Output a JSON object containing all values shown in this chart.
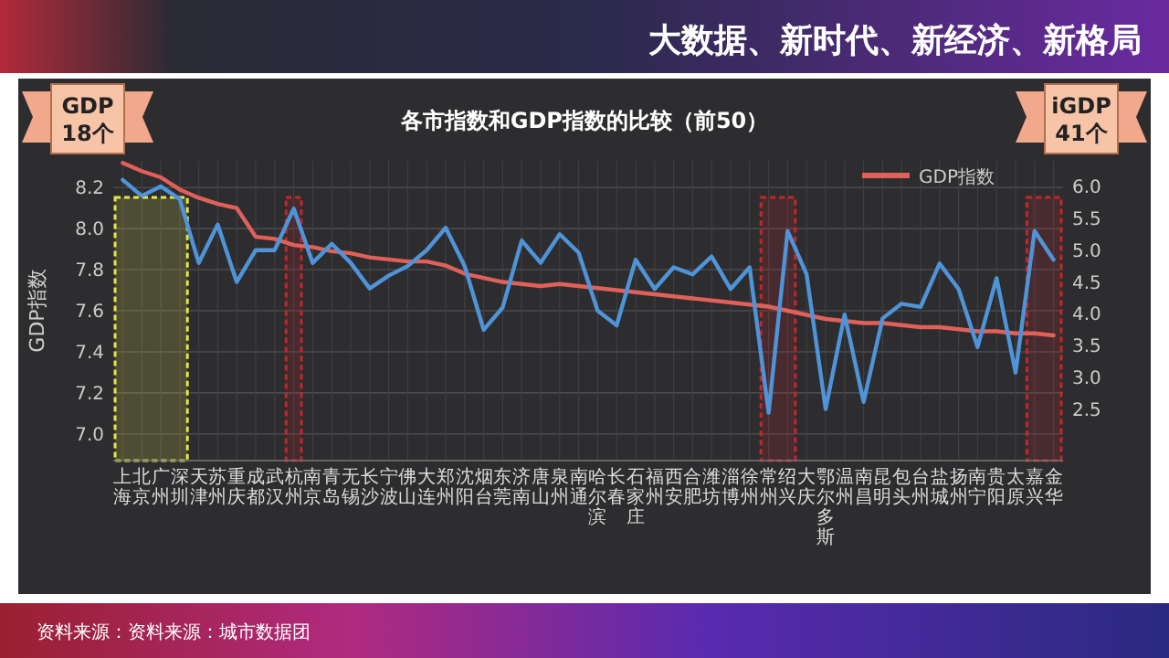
{
  "chart_data": {
    "type": "line",
    "title": "大数据、新时代、新经济、新格局",
    "subtitle": "各市指数和GDP指数的比较（前50）",
    "ylabel": "GDP指数",
    "categories": [
      "上海",
      "北京",
      "广州",
      "深圳",
      "天津",
      "苏州",
      "重庆",
      "成都",
      "武汉",
      "杭州",
      "南京",
      "青岛",
      "无锡",
      "长沙",
      "宁波",
      "佛山",
      "大连",
      "郑州",
      "沈阳",
      "烟台",
      "东莞",
      "济南",
      "唐山",
      "泉州",
      "南通",
      "哈尔滨",
      "长春",
      "石家庄",
      "福州",
      "西安",
      "合肥",
      "潍坊",
      "淄博",
      "徐州",
      "常州",
      "绍兴",
      "大庆",
      "鄂尔多斯",
      "温州",
      "南昌",
      "昆明",
      "包头",
      "台州",
      "盐城",
      "扬州",
      "南宁",
      "贵阳",
      "太原",
      "嘉兴",
      "金华"
    ],
    "series": [
      {
        "name": "GDP指数",
        "color": "#e0605a",
        "values": [
          8.32,
          8.28,
          8.25,
          8.19,
          8.15,
          8.12,
          8.1,
          7.96,
          7.95,
          7.92,
          7.91,
          7.89,
          7.88,
          7.86,
          7.85,
          7.84,
          7.84,
          7.82,
          7.78,
          7.76,
          7.74,
          7.73,
          7.72,
          7.73,
          7.72,
          7.71,
          7.7,
          7.69,
          7.68,
          7.67,
          7.66,
          7.65,
          7.64,
          7.63,
          7.62,
          7.6,
          7.58,
          7.56,
          7.55,
          7.54,
          7.54,
          7.53,
          7.52,
          7.52,
          7.51,
          7.5,
          7.5,
          7.49,
          7.49,
          7.48
        ]
      },
      {
        "color": "#4f94d8",
        "axis": "y2",
        "values": [
          6.1,
          5.85,
          6.0,
          5.8,
          4.8,
          5.4,
          4.5,
          5.0,
          5.0,
          5.65,
          4.8,
          5.1,
          4.8,
          4.4,
          4.6,
          4.75,
          5.0,
          5.35,
          4.75,
          3.75,
          4.1,
          5.15,
          4.8,
          5.25,
          4.96,
          4.05,
          3.82,
          4.85,
          4.39,
          4.73,
          4.62,
          4.9,
          4.39,
          4.73,
          2.45,
          5.3,
          4.62,
          2.51,
          3.99,
          2.62,
          3.93,
          4.16,
          4.11,
          4.79,
          4.39,
          3.48,
          4.56,
          3.08,
          5.3,
          4.85
        ]
      }
    ],
    "ylim": [
      6.87,
      8.33
    ],
    "yticks": [
      {
        "value": 7.0,
        "label": "7.0"
      },
      7.2,
      7.4,
      7.6,
      7.8,
      {
        "value": 8.0,
        "label": "8.0"
      },
      8.2
    ],
    "y2lim": [
      1.7,
      6.4
    ],
    "y2ticks": [
      2.5,
      {
        "value": 3.0,
        "label": "3.0"
      },
      3.5,
      {
        "value": 4.0,
        "label": "4.0"
      },
      4.5,
      {
        "value": 5.0,
        "label": "5.0"
      },
      5.5,
      {
        "value": 6.0,
        "label": "6.0"
      }
    ],
    "grid": true,
    "legend": "top right",
    "bands": [
      {
        "axis": "x",
        "from": "上海",
        "to": "深圳",
        "color": "#e6e64a"
      },
      {
        "axis": "x",
        "from": "杭州",
        "to": "杭州",
        "color": "#c0282d"
      },
      {
        "axis": "x",
        "from": "常州",
        "to": "绍兴",
        "color": "#c0282d"
      },
      {
        "axis": "x",
        "from": "嘉兴",
        "to": "金华",
        "color": "#c0282d"
      }
    ],
    "annotations": [
      "GDP 18个",
      "iGDP 41个",
      "资料来源：资料来源：城市数据团"
    ]
  }
}
